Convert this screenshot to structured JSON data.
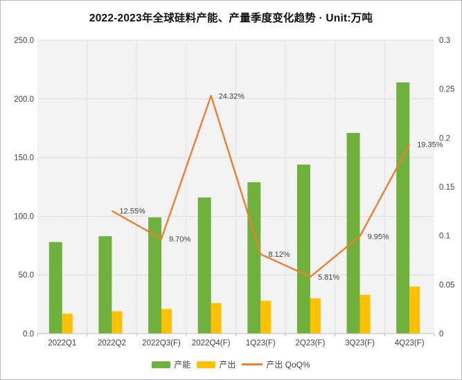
{
  "chart_data": {
    "type": "bar",
    "combo": "bar+line",
    "title": "2022-2023年全球硅料产能、产量季度变化趋势 · Unit:万吨",
    "unit": "万吨",
    "categories": [
      "2022Q1",
      "2022Q2",
      "2022Q3(F)",
      "2022Q4(F)",
      "1Q23(F)",
      "2Q23(F)",
      "3Q23(F)",
      "4Q23(F)"
    ],
    "series": [
      {
        "name": "产能",
        "type": "bar",
        "axis": "left",
        "color": "#6fb13c",
        "values": [
          78,
          83,
          99,
          116,
          129,
          144,
          171,
          214
        ]
      },
      {
        "name": "产出",
        "type": "bar",
        "axis": "left",
        "color": "#ffc000",
        "values": [
          17,
          19,
          21,
          26,
          28,
          30,
          33,
          40
        ]
      },
      {
        "name": "产出 QoQ%",
        "type": "line",
        "axis": "right",
        "color": "#ed7d31",
        "values": [
          null,
          0.1255,
          0.097,
          0.2432,
          0.0812,
          0.0581,
          0.0995,
          0.1935
        ],
        "point_labels": [
          "",
          "12.55%",
          "9.70%",
          "24.32%",
          "8.12%",
          "5.81%",
          "9.95%",
          "19.35%"
        ]
      }
    ],
    "left_axis": {
      "min": 0,
      "max": 250,
      "step": 50,
      "tick_labels_top_to_bottom": [
        "250.0",
        "200.0",
        "150.0",
        "100.0",
        "50.0",
        "0.0"
      ]
    },
    "right_axis": {
      "min": 0,
      "max": 0.3,
      "step": 0.05,
      "tick_labels_top_to_bottom": [
        "0.3",
        "0.25",
        "0.2",
        "0.15",
        "0.1",
        "0.05",
        "0"
      ]
    },
    "grid": true,
    "legend_position": "bottom",
    "colors": {
      "grid_line": "#dcdcdc",
      "axis_line": "#bfbfbf",
      "tick_text": "#3f3f3f",
      "plot_fill": "#f5f5f5",
      "frame_border": "#b9b9b9"
    }
  }
}
